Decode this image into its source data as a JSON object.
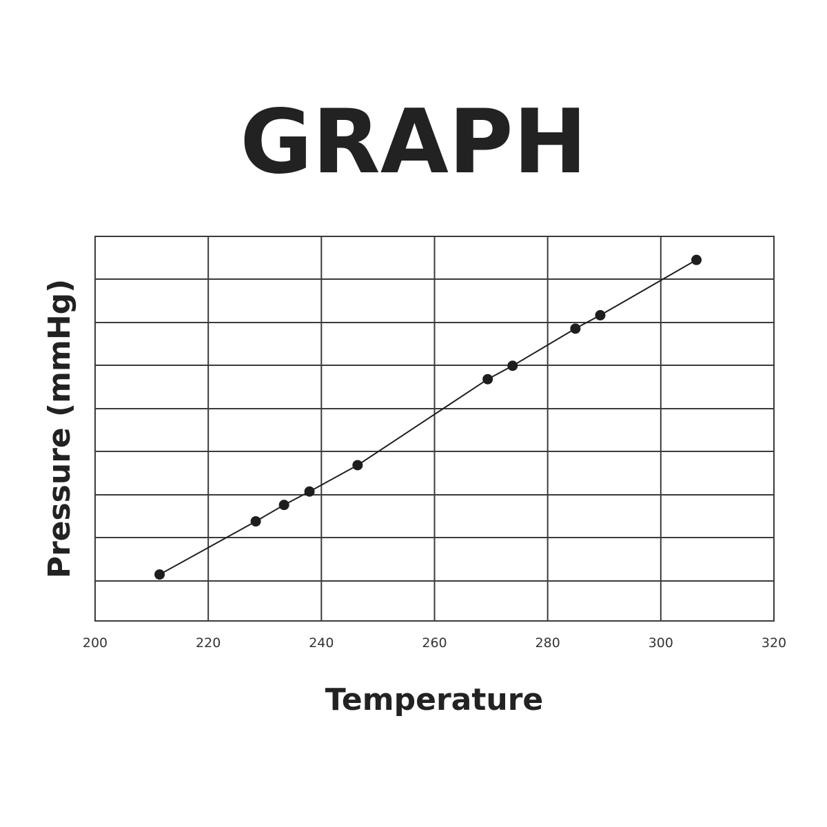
{
  "chart_data": {
    "type": "line",
    "title": "GRAPH",
    "xlabel": "Temperature",
    "ylabel": "Pressure (mmHg)",
    "xlim": [
      200,
      320
    ],
    "x_ticks": [
      200,
      220,
      240,
      260,
      280,
      300,
      320
    ],
    "y_tick_labels_shown": false,
    "grid": true,
    "legend": "none",
    "line_color": "#1e1e1e",
    "grid_color": "#3a3a3a",
    "series": [
      {
        "x": [
          211.4,
          228.4,
          233.4,
          237.9,
          246.4,
          269.4,
          273.8,
          284.9,
          289.3,
          306.3
        ],
        "y": [
          0.15,
          1.38,
          1.76,
          2.07,
          2.68,
          4.67,
          4.98,
          5.84,
          6.15,
          7.43
        ]
      }
    ]
  }
}
